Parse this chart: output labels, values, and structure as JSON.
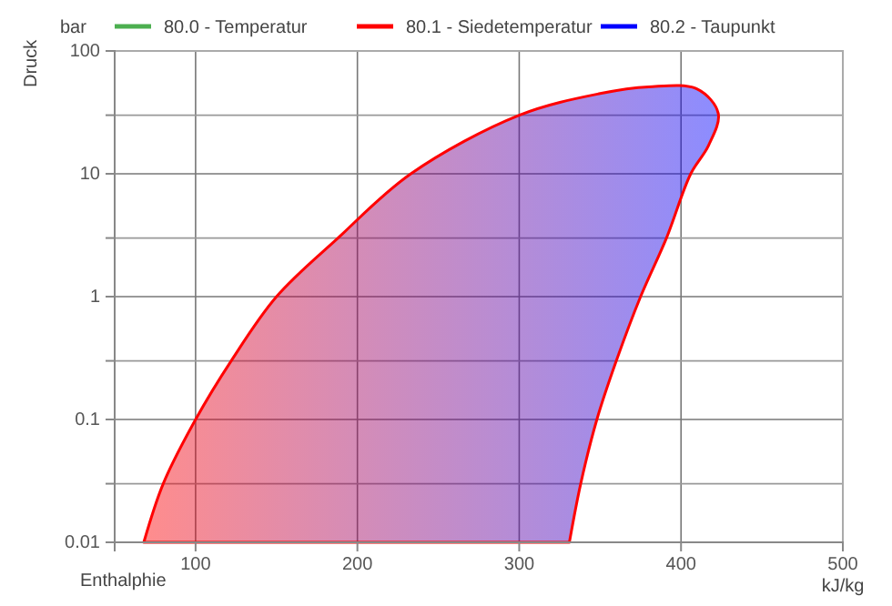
{
  "chart_data": {
    "type": "area",
    "xlabel": "Enthalphie",
    "ylabel": "Druck",
    "annotations": [
      "bar",
      "kJ/kg"
    ],
    "xlim": [
      50,
      500
    ],
    "xticks": [
      100,
      200,
      300,
      400,
      500
    ],
    "ylim": [
      0.01,
      100
    ],
    "log": true,
    "yticks": [
      0.01,
      {
        "value": 0.03,
        "label": null
      },
      0.1,
      {
        "value": 0.3,
        "label": null
      },
      1,
      {
        "value": 3,
        "label": null
      },
      10,
      {
        "value": 30,
        "label": null
      },
      100
    ],
    "grid": true,
    "legend": "top",
    "series": [
      {
        "name": "80.0 - Temperatur",
        "color": "#4caf50"
      },
      {
        "name": "80.1 - Siedetemperatur",
        "color": "#ff0000",
        "x": [
          68,
          80,
          100,
          122,
          150,
          188,
          233,
          300,
          350,
          380,
          410,
          423,
          417,
          406,
          391,
          375,
          360,
          348,
          338,
          331
        ],
        "values": [
          0.01,
          0.03,
          0.1,
          0.3,
          1,
          3,
          10,
          30,
          45,
          51,
          49,
          31,
          17,
          10,
          3,
          1,
          0.3,
          0.1,
          0.03,
          0.01
        ]
      },
      {
        "name": "80.2 - Taupunkt",
        "color": "#0000ff"
      }
    ]
  }
}
